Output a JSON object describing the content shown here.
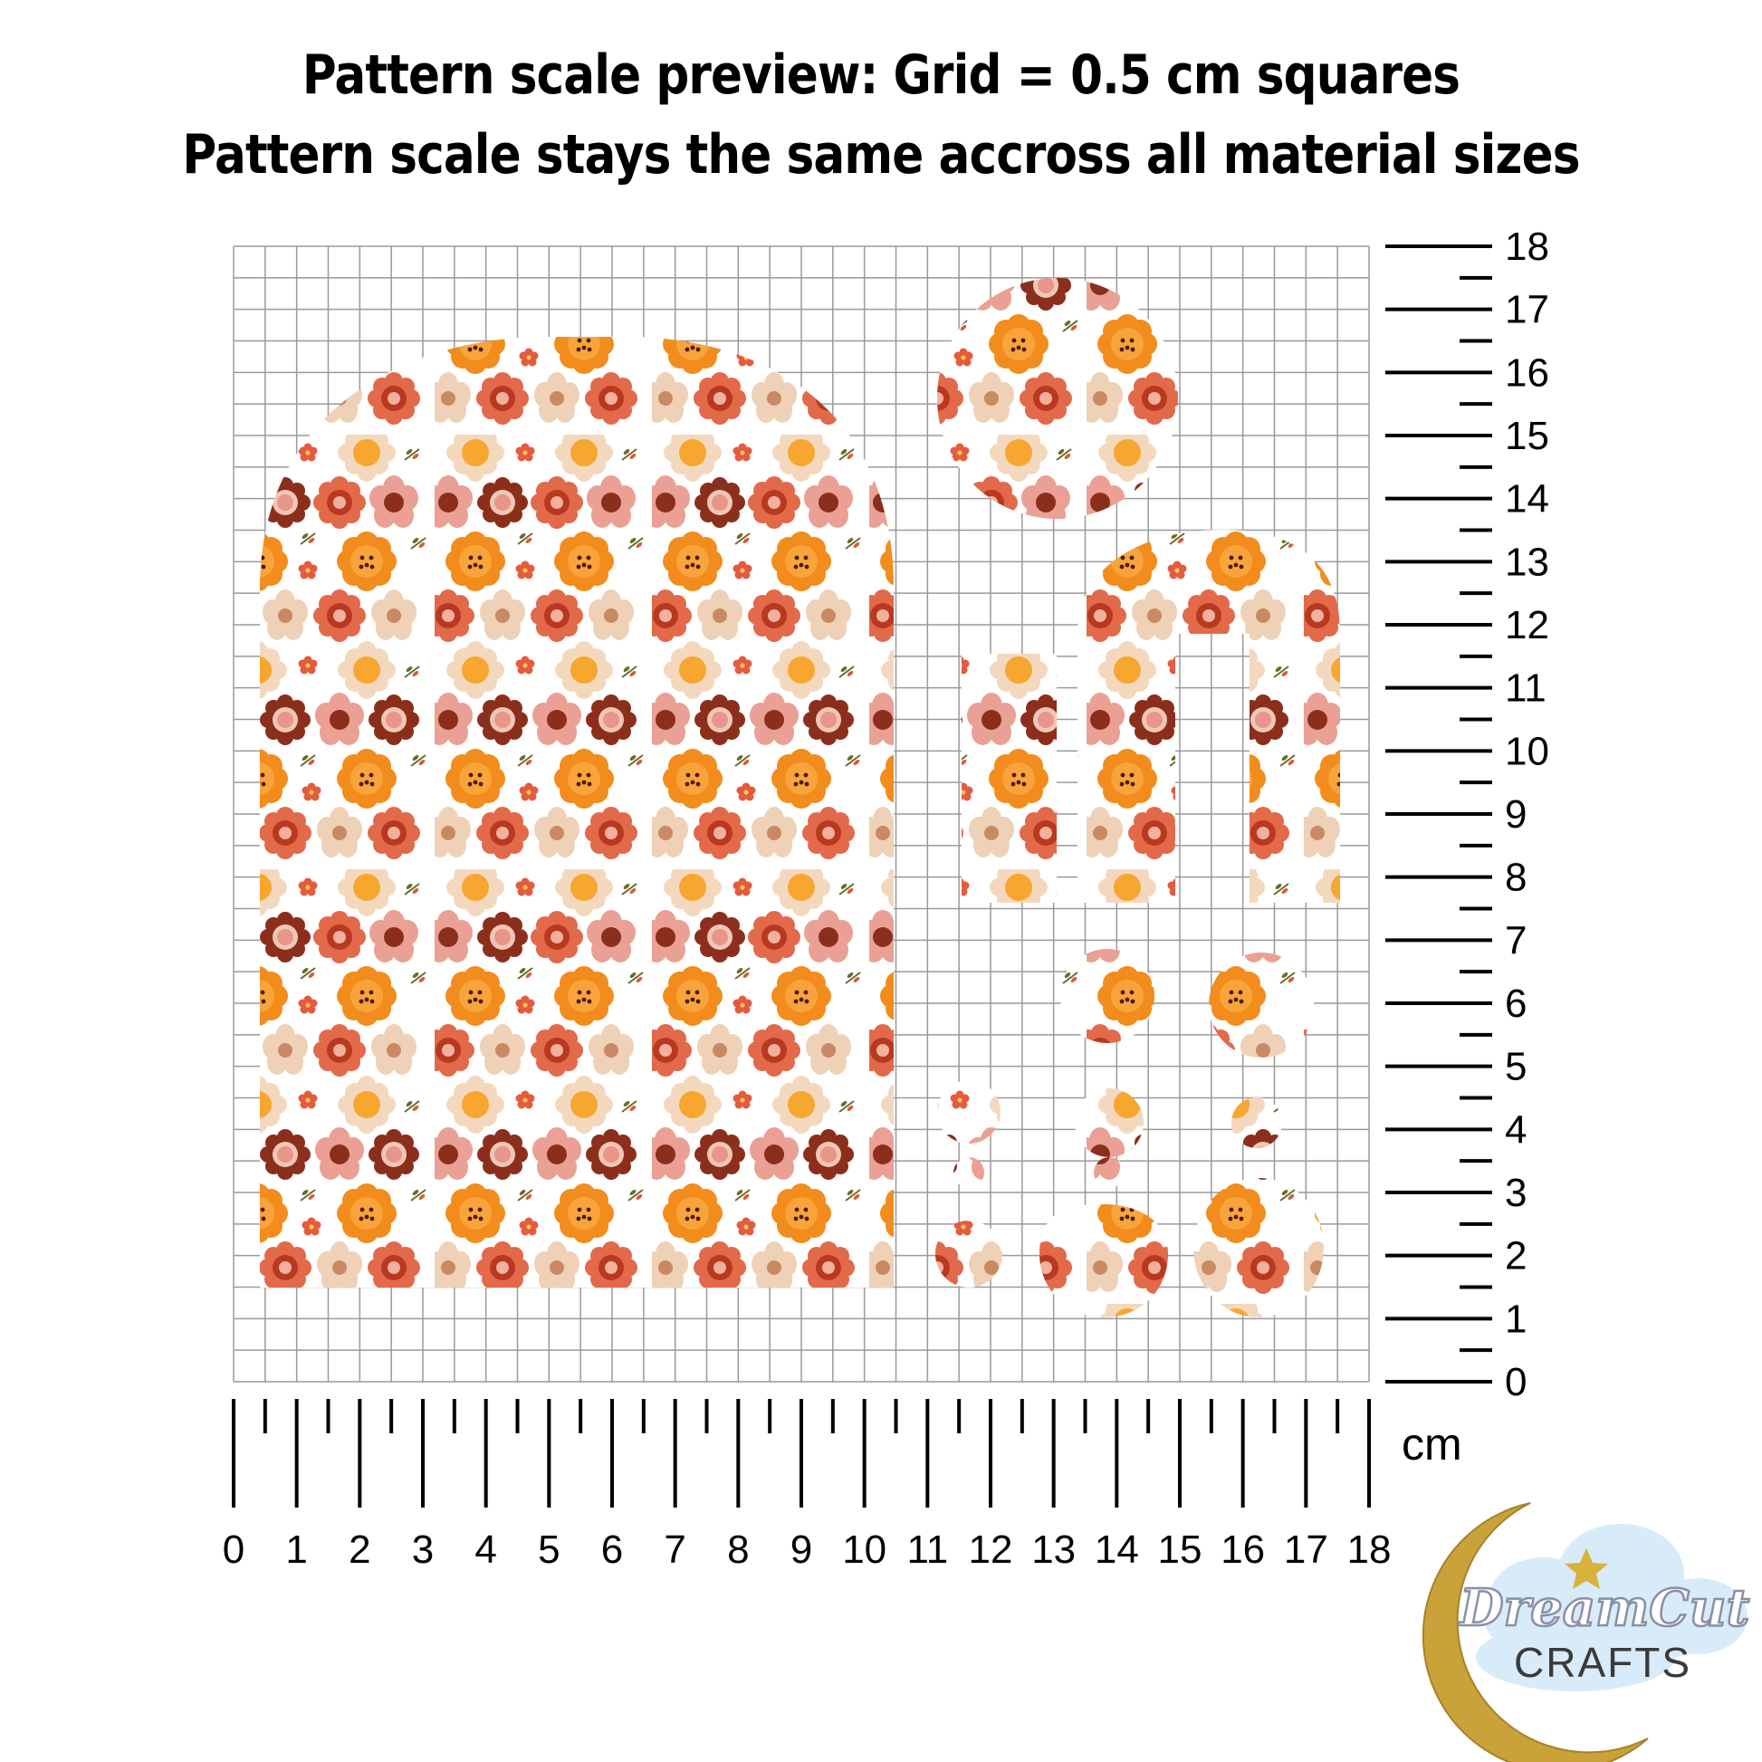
{
  "header": {
    "line1": "Pattern scale preview: Grid = 0.5 cm squares",
    "line2": "Pattern scale stays the same accross all material sizes"
  },
  "ruler": {
    "unit": "cm",
    "max": 18,
    "x_labels": [
      "0",
      "1",
      "2",
      "3",
      "4",
      "5",
      "6",
      "7",
      "8",
      "9",
      "10",
      "11",
      "12",
      "13",
      "14",
      "15",
      "16",
      "17",
      "18"
    ],
    "y_labels": [
      "0",
      "1",
      "2",
      "3",
      "4",
      "5",
      "6",
      "7",
      "8",
      "9",
      "10",
      "11",
      "12",
      "13",
      "14",
      "15",
      "16",
      "17",
      "18"
    ]
  },
  "logo": {
    "line1": "DreamCut",
    "line2": "CRAFTS"
  },
  "colors": {
    "grid": "#9a9a9a",
    "orange": "#f28c1c",
    "light_orange": "#f9a43a",
    "coral": "#e2694a",
    "pink": "#eaa094",
    "beige": "#eed1b7",
    "brown": "#8b2f1c",
    "leaf": "#6b6a2a",
    "gold": "#c9a23a",
    "cloud": "#cfe6f5"
  }
}
